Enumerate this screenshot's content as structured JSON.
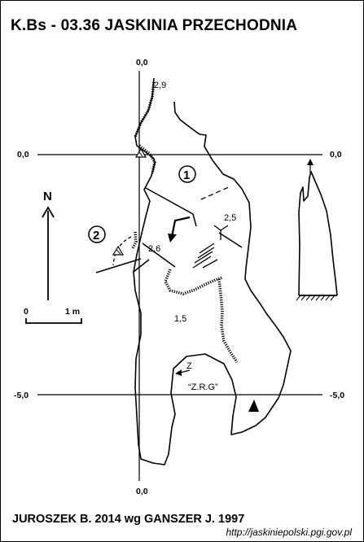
{
  "title": "K.Bs - 03.36  JASKINIA PRZECHODNIA",
  "author": "JUROSZEK B. 2014 wg GANSZER J. 1997",
  "url": "http://jaskiniepolski.pgi.gov.pl",
  "north_label": "N",
  "scale": {
    "start": "0",
    "end": "1 m"
  },
  "grid_labels": {
    "top": "0,0",
    "bottom": "0,0",
    "left_zero": "0,0",
    "right_zero": "0,0",
    "left_minus5": "-5,0",
    "right_minus5": "-5,0"
  },
  "depth_labels": [
    "2,9",
    "2,5",
    "2,6",
    "1,5"
  ],
  "chamber_labels": [
    "1",
    "2"
  ],
  "annotations": {
    "z": "Z",
    "zrg": "“Z.R.G”"
  }
}
